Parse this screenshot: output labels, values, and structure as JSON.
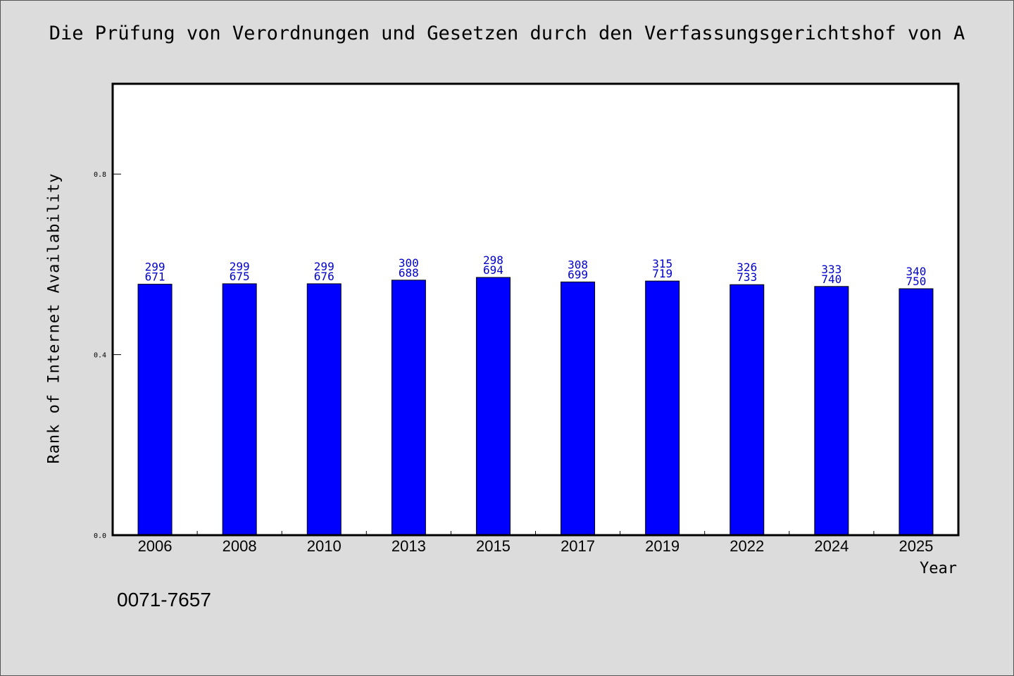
{
  "issn": "0071-7657",
  "chart_data": {
    "type": "bar",
    "title": "Die Prüfung von Verordnungen und Gesetzen durch den Verfassungsgerichtshof von A",
    "xlabel": "Year",
    "ylabel": "Rank of Internet Availability",
    "categories": [
      "2006",
      "2008",
      "2010",
      "2013",
      "2015",
      "2017",
      "2019",
      "2022",
      "2024",
      "2025"
    ],
    "values": [
      0.556,
      0.557,
      0.557,
      0.565,
      0.571,
      0.561,
      0.563,
      0.555,
      0.551,
      0.546
    ],
    "label_top": [
      "299",
      "299",
      "299",
      "300",
      "298",
      "308",
      "315",
      "326",
      "333",
      "340"
    ],
    "label_bottom": [
      "671",
      "675",
      "676",
      "688",
      "694",
      "699",
      "719",
      "733",
      "740",
      "750"
    ],
    "ylim": [
      0,
      1.0
    ],
    "yticks": [
      0.0,
      0.4,
      0.8
    ],
    "ytick_labels": [
      "0.0",
      "0.4",
      "0.8"
    ],
    "grid": false,
    "colors": {
      "bar": "#0000ff",
      "bar_label": "#0000cc",
      "background": "#dcdcdc",
      "plot_bg": "#ffffff"
    }
  }
}
